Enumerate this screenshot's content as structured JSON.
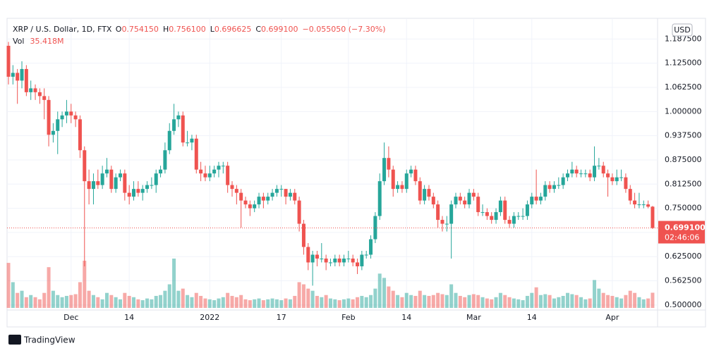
{
  "chart_data": {
    "type": "candlestick",
    "header": {
      "symbol": "XRP / U.S. Dollar, 1D, FTX",
      "o_letter": "O",
      "o": "0.754150",
      "h_letter": "H",
      "h": "0.756100",
      "l_letter": "L",
      "l": "0.696625",
      "c_letter": "C",
      "c": "0.699100",
      "change": "−0.055050 (−7.30%)",
      "vol_name": "Vol",
      "vol": "35.418M"
    },
    "currency": "USD",
    "last_price_label": "0.699100",
    "countdown": "02:46:06",
    "brand": "TradingView",
    "up_color": "#26a69a",
    "down_color": "#ef5350",
    "last_price": 0.6991,
    "ylim": [
      0.487,
      1.241
    ],
    "yticks": [
      {
        "value": 0.5,
        "label": "0.500000"
      },
      {
        "value": 0.5625,
        "label": "0.562500"
      },
      {
        "value": 0.625,
        "label": "0.625000"
      },
      {
        "value": 0.6875,
        "label": "0.687500"
      },
      {
        "value": 0.75,
        "label": "0.750000"
      },
      {
        "value": 0.8125,
        "label": "0.812500"
      },
      {
        "value": 0.875,
        "label": "0.875000"
      },
      {
        "value": 0.9375,
        "label": "0.937500"
      },
      {
        "value": 1,
        "label": "1.000000"
      },
      {
        "value": 1.0625,
        "label": "1.062500"
      },
      {
        "value": 1.125,
        "label": "1.125000"
      },
      {
        "value": 1.1875,
        "label": "1.187500"
      }
    ],
    "xticks": [
      {
        "value": 14,
        "label": "Dec"
      },
      {
        "value": 27,
        "label": "14"
      },
      {
        "value": 45,
        "label": "2022"
      },
      {
        "value": 61,
        "label": "17"
      },
      {
        "value": 76,
        "label": "Feb"
      },
      {
        "value": 89,
        "label": "14"
      },
      {
        "value": 104,
        "label": "Mar"
      },
      {
        "value": 117,
        "label": "14"
      },
      {
        "value": 135,
        "label": "Apr"
      }
    ],
    "grid": true,
    "candles": [
      [
        1.17,
        1.18,
        1.07,
        1.09
      ],
      [
        1.09,
        1.12,
        1.07,
        1.1
      ],
      [
        1.1,
        1.11,
        1.02,
        1.08
      ],
      [
        1.08,
        1.13,
        1.06,
        1.11
      ],
      [
        1.11,
        1.12,
        1.04,
        1.05
      ],
      [
        1.05,
        1.08,
        1.03,
        1.06
      ],
      [
        1.06,
        1.07,
        1.03,
        1.05
      ],
      [
        1.05,
        1.06,
        1.02,
        1.04
      ],
      [
        1.04,
        1.06,
        0.98,
        1.03
      ],
      [
        1.03,
        1.04,
        0.91,
        0.94
      ],
      [
        0.94,
        0.97,
        0.92,
        0.95
      ],
      [
        0.95,
        1.0,
        0.89,
        0.98
      ],
      [
        0.98,
        1.0,
        0.96,
        0.99
      ],
      [
        0.99,
        1.03,
        0.97,
        1.0
      ],
      [
        1.0,
        1.02,
        0.97,
        0.99
      ],
      [
        0.99,
        1.0,
        0.96,
        0.98
      ],
      [
        0.98,
        0.99,
        0.88,
        0.9
      ],
      [
        0.9,
        0.91,
        0.6,
        0.82
      ],
      [
        0.82,
        0.85,
        0.76,
        0.8
      ],
      [
        0.8,
        0.84,
        0.76,
        0.82
      ],
      [
        0.82,
        0.85,
        0.8,
        0.81
      ],
      [
        0.81,
        0.86,
        0.8,
        0.84
      ],
      [
        0.84,
        0.88,
        0.83,
        0.85
      ],
      [
        0.85,
        0.86,
        0.79,
        0.8
      ],
      [
        0.8,
        0.84,
        0.79,
        0.83
      ],
      [
        0.83,
        0.85,
        0.82,
        0.84
      ],
      [
        0.84,
        0.85,
        0.77,
        0.79
      ],
      [
        0.79,
        0.81,
        0.76,
        0.78
      ],
      [
        0.78,
        0.82,
        0.77,
        0.8
      ],
      [
        0.8,
        0.82,
        0.78,
        0.79
      ],
      [
        0.79,
        0.81,
        0.77,
        0.8
      ],
      [
        0.8,
        0.82,
        0.79,
        0.81
      ],
      [
        0.81,
        0.83,
        0.8,
        0.81
      ],
      [
        0.81,
        0.85,
        0.79,
        0.84
      ],
      [
        0.84,
        0.86,
        0.83,
        0.85
      ],
      [
        0.85,
        0.92,
        0.84,
        0.9
      ],
      [
        0.9,
        0.97,
        0.89,
        0.95
      ],
      [
        0.95,
        1.02,
        0.94,
        0.98
      ],
      [
        0.98,
        1.0,
        0.96,
        0.99
      ],
      [
        0.99,
        1.0,
        0.91,
        0.92
      ],
      [
        0.92,
        0.95,
        0.91,
        0.92
      ],
      [
        0.92,
        0.94,
        0.9,
        0.93
      ],
      [
        0.93,
        0.94,
        0.84,
        0.85
      ],
      [
        0.85,
        0.87,
        0.82,
        0.84
      ],
      [
        0.84,
        0.86,
        0.82,
        0.83
      ],
      [
        0.83,
        0.86,
        0.82,
        0.84
      ],
      [
        0.84,
        0.86,
        0.83,
        0.85
      ],
      [
        0.85,
        0.87,
        0.83,
        0.86
      ],
      [
        0.86,
        0.87,
        0.84,
        0.86
      ],
      [
        0.86,
        0.87,
        0.79,
        0.81
      ],
      [
        0.81,
        0.82,
        0.78,
        0.8
      ],
      [
        0.8,
        0.81,
        0.76,
        0.79
      ],
      [
        0.79,
        0.8,
        0.7,
        0.77
      ],
      [
        0.77,
        0.78,
        0.75,
        0.76
      ],
      [
        0.76,
        0.77,
        0.73,
        0.75
      ],
      [
        0.75,
        0.77,
        0.74,
        0.76
      ],
      [
        0.76,
        0.79,
        0.75,
        0.78
      ],
      [
        0.78,
        0.79,
        0.75,
        0.77
      ],
      [
        0.77,
        0.79,
        0.76,
        0.78
      ],
      [
        0.78,
        0.8,
        0.77,
        0.79
      ],
      [
        0.79,
        0.81,
        0.78,
        0.8
      ],
      [
        0.8,
        0.81,
        0.78,
        0.8
      ],
      [
        0.8,
        0.8,
        0.76,
        0.78
      ],
      [
        0.78,
        0.8,
        0.77,
        0.79
      ],
      [
        0.79,
        0.8,
        0.76,
        0.77
      ],
      [
        0.77,
        0.78,
        0.69,
        0.71
      ],
      [
        0.71,
        0.72,
        0.63,
        0.65
      ],
      [
        0.65,
        0.66,
        0.59,
        0.61
      ],
      [
        0.61,
        0.64,
        0.55,
        0.63
      ],
      [
        0.63,
        0.64,
        0.6,
        0.62
      ],
      [
        0.62,
        0.66,
        0.61,
        0.62
      ],
      [
        0.62,
        0.63,
        0.59,
        0.61
      ],
      [
        0.61,
        0.62,
        0.6,
        0.61
      ],
      [
        0.61,
        0.63,
        0.6,
        0.62
      ],
      [
        0.62,
        0.63,
        0.6,
        0.61
      ],
      [
        0.61,
        0.63,
        0.6,
        0.62
      ],
      [
        0.62,
        0.64,
        0.61,
        0.62
      ],
      [
        0.62,
        0.63,
        0.6,
        0.61
      ],
      [
        0.61,
        0.62,
        0.58,
        0.6
      ],
      [
        0.6,
        0.64,
        0.59,
        0.63
      ],
      [
        0.63,
        0.64,
        0.62,
        0.63
      ],
      [
        0.63,
        0.68,
        0.62,
        0.67
      ],
      [
        0.67,
        0.74,
        0.66,
        0.73
      ],
      [
        0.73,
        0.84,
        0.72,
        0.82
      ],
      [
        0.82,
        0.92,
        0.81,
        0.88
      ],
      [
        0.88,
        0.91,
        0.83,
        0.85
      ],
      [
        0.85,
        0.86,
        0.78,
        0.8
      ],
      [
        0.8,
        0.82,
        0.79,
        0.81
      ],
      [
        0.81,
        0.82,
        0.79,
        0.8
      ],
      [
        0.8,
        0.85,
        0.79,
        0.84
      ],
      [
        0.84,
        0.86,
        0.83,
        0.85
      ],
      [
        0.85,
        0.86,
        0.81,
        0.82
      ],
      [
        0.82,
        0.83,
        0.76,
        0.77
      ],
      [
        0.77,
        0.81,
        0.76,
        0.8
      ],
      [
        0.8,
        0.81,
        0.77,
        0.78
      ],
      [
        0.78,
        0.79,
        0.75,
        0.76
      ],
      [
        0.76,
        0.77,
        0.7,
        0.72
      ],
      [
        0.72,
        0.73,
        0.69,
        0.71
      ],
      [
        0.71,
        0.73,
        0.69,
        0.71
      ],
      [
        0.71,
        0.77,
        0.62,
        0.76
      ],
      [
        0.76,
        0.79,
        0.75,
        0.78
      ],
      [
        0.78,
        0.79,
        0.76,
        0.77
      ],
      [
        0.77,
        0.78,
        0.75,
        0.76
      ],
      [
        0.76,
        0.8,
        0.75,
        0.79
      ],
      [
        0.79,
        0.8,
        0.77,
        0.78
      ],
      [
        0.78,
        0.79,
        0.73,
        0.74
      ],
      [
        0.74,
        0.76,
        0.73,
        0.74
      ],
      [
        0.74,
        0.75,
        0.72,
        0.73
      ],
      [
        0.73,
        0.74,
        0.71,
        0.72
      ],
      [
        0.72,
        0.75,
        0.71,
        0.74
      ],
      [
        0.74,
        0.78,
        0.73,
        0.77
      ],
      [
        0.77,
        0.78,
        0.71,
        0.72
      ],
      [
        0.72,
        0.73,
        0.7,
        0.71
      ],
      [
        0.71,
        0.74,
        0.7,
        0.73
      ],
      [
        0.73,
        0.74,
        0.72,
        0.73
      ],
      [
        0.73,
        0.75,
        0.72,
        0.73
      ],
      [
        0.73,
        0.77,
        0.72,
        0.76
      ],
      [
        0.76,
        0.79,
        0.75,
        0.78
      ],
      [
        0.78,
        0.85,
        0.76,
        0.77
      ],
      [
        0.77,
        0.79,
        0.76,
        0.78
      ],
      [
        0.78,
        0.82,
        0.77,
        0.81
      ],
      [
        0.81,
        0.82,
        0.79,
        0.8
      ],
      [
        0.8,
        0.82,
        0.79,
        0.81
      ],
      [
        0.81,
        0.83,
        0.8,
        0.81
      ],
      [
        0.81,
        0.84,
        0.8,
        0.83
      ],
      [
        0.83,
        0.85,
        0.82,
        0.84
      ],
      [
        0.84,
        0.87,
        0.83,
        0.85
      ],
      [
        0.85,
        0.86,
        0.83,
        0.84
      ],
      [
        0.84,
        0.85,
        0.83,
        0.84
      ],
      [
        0.84,
        0.85,
        0.83,
        0.84
      ],
      [
        0.84,
        0.85,
        0.82,
        0.83
      ],
      [
        0.83,
        0.91,
        0.82,
        0.86
      ],
      [
        0.86,
        0.88,
        0.85,
        0.86
      ],
      [
        0.86,
        0.87,
        0.83,
        0.84
      ],
      [
        0.84,
        0.85,
        0.78,
        0.83
      ],
      [
        0.83,
        0.84,
        0.81,
        0.82
      ],
      [
        0.82,
        0.85,
        0.81,
        0.83
      ],
      [
        0.83,
        0.85,
        0.82,
        0.83
      ],
      [
        0.83,
        0.84,
        0.79,
        0.8
      ],
      [
        0.8,
        0.81,
        0.76,
        0.77
      ],
      [
        0.77,
        0.79,
        0.75,
        0.76
      ],
      [
        0.76,
        0.79,
        0.75,
        0.76
      ],
      [
        0.76,
        0.77,
        0.75,
        0.76
      ],
      [
        0.76,
        0.77,
        0.75,
        0.75415
      ],
      [
        0.75415,
        0.7561,
        0.696625,
        0.6991
      ]
    ],
    "volume": [
      105,
      60,
      35,
      40,
      25,
      30,
      25,
      20,
      35,
      95,
      40,
      30,
      25,
      28,
      30,
      32,
      60,
      110,
      40,
      30,
      25,
      20,
      35,
      30,
      25,
      20,
      35,
      28,
      25,
      20,
      18,
      22,
      20,
      28,
      30,
      40,
      55,
      115,
      40,
      45,
      30,
      25,
      35,
      28,
      22,
      20,
      18,
      22,
      25,
      35,
      28,
      25,
      30,
      20,
      18,
      20,
      22,
      18,
      20,
      22,
      20,
      18,
      22,
      20,
      28,
      60,
      55,
      45,
      40,
      28,
      25,
      30,
      22,
      20,
      18,
      20,
      22,
      20,
      25,
      28,
      25,
      30,
      45,
      80,
      70,
      50,
      40,
      30,
      25,
      35,
      30,
      28,
      40,
      30,
      28,
      30,
      35,
      32,
      30,
      55,
      35,
      28,
      25,
      30,
      32,
      30,
      25,
      22,
      20,
      25,
      35,
      30,
      25,
      22,
      20,
      18,
      28,
      35,
      48,
      30,
      32,
      30,
      22,
      25,
      28,
      35,
      32,
      30,
      25,
      20,
      22,
      65,
      45,
      35,
      30,
      28,
      25,
      22,
      30,
      40,
      35,
      25,
      20,
      22,
      35.418
    ]
  }
}
